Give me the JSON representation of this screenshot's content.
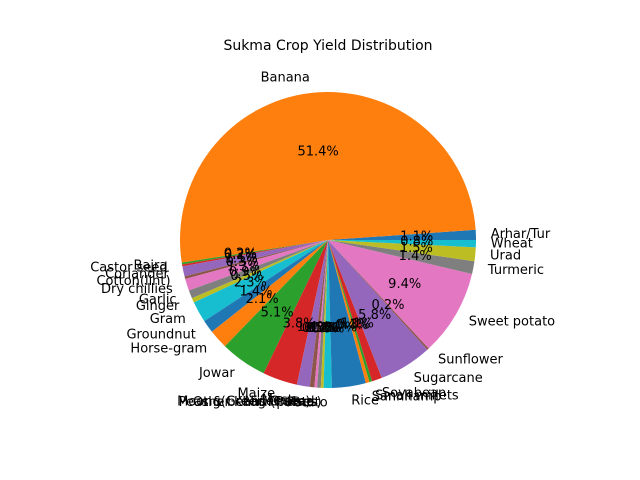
{
  "chart_data": {
    "type": "pie",
    "title": "Sukma Crop Yield Distribution",
    "start_angle_deg": 0,
    "counterclock": true,
    "colors": [
      "#1f77b4",
      "#ff7f0e",
      "#2ca02c",
      "#d62728",
      "#9467bd",
      "#8c564b",
      "#e377c2",
      "#7f7f7f",
      "#bcbd22",
      "#17becf"
    ],
    "slices": [
      {
        "label": "Arhar/Tur",
        "value": 1.1,
        "pct_label": "1.1%"
      },
      {
        "label": "Banana",
        "value": 51.4,
        "pct_label": "51.4%"
      },
      {
        "label": "Bajra",
        "value": 0.2,
        "pct_label": "0.2%"
      },
      {
        "label": "Castor seed",
        "value": 0.2,
        "pct_label": "0.2%"
      },
      {
        "label": "Coriander",
        "value": 1.1,
        "pct_label": "1.1%"
      },
      {
        "label": "Cotton(lint)",
        "value": 0.3,
        "pct_label": "0.3%"
      },
      {
        "label": "Dry chillies",
        "value": 1.3,
        "pct_label": "1.3%"
      },
      {
        "label": "Garlic",
        "value": 0.9,
        "pct_label": "0.9%"
      },
      {
        "label": "Ginger",
        "value": 0.5,
        "pct_label": "0.5%"
      },
      {
        "label": "Gram",
        "value": 2.3,
        "pct_label": "2.3%"
      },
      {
        "label": "Groundnut",
        "value": 1.4,
        "pct_label": "1.4%"
      },
      {
        "label": "Horse-gram",
        "value": 2.1,
        "pct_label": "2.1%"
      },
      {
        "label": "Jowar",
        "value": 5.1,
        "pct_label": "5.1%"
      },
      {
        "label": "Maize",
        "value": 3.8,
        "pct_label": "3.8%"
      },
      {
        "label": "Mesta",
        "value": 1.4,
        "pct_label": "1.4%"
      },
      {
        "label": "Moong(Green Gram)",
        "value": 0.5,
        "pct_label": "0.5%"
      },
      {
        "label": "Niger seed",
        "value": 0.3,
        "pct_label": "0.3%"
      },
      {
        "label": "Other Kharif pulses",
        "value": 0.4,
        "pct_label": "0.4%"
      },
      {
        "label": "Peas & beans (Pulses)",
        "value": 0.3,
        "pct_label": "0.3%"
      },
      {
        "label": "Potato",
        "value": 0.9,
        "pct_label": "0.9%"
      },
      {
        "label": "Rice",
        "value": 3.7,
        "pct_label": "3.7%"
      },
      {
        "label": "Sannhamp",
        "value": 0.4,
        "pct_label": "0.4%"
      },
      {
        "label": "Small millets",
        "value": 0.3,
        "pct_label": "0.3%"
      },
      {
        "label": "Soyabean",
        "value": 1.1,
        "pct_label": "1.1%"
      },
      {
        "label": "Sugarcane",
        "value": 5.8,
        "pct_label": "5.8%"
      },
      {
        "label": "Sunflower",
        "value": 0.2,
        "pct_label": "0.2%"
      },
      {
        "label": "Sweet potato",
        "value": 9.4,
        "pct_label": "9.4%"
      },
      {
        "label": "Turmeric",
        "value": 1.4,
        "pct_label": "1.4%"
      },
      {
        "label": "Urad",
        "value": 1.5,
        "pct_label": "1.5%"
      },
      {
        "label": "Wheat",
        "value": 0.8,
        "pct_label": "0.8%"
      }
    ]
  }
}
